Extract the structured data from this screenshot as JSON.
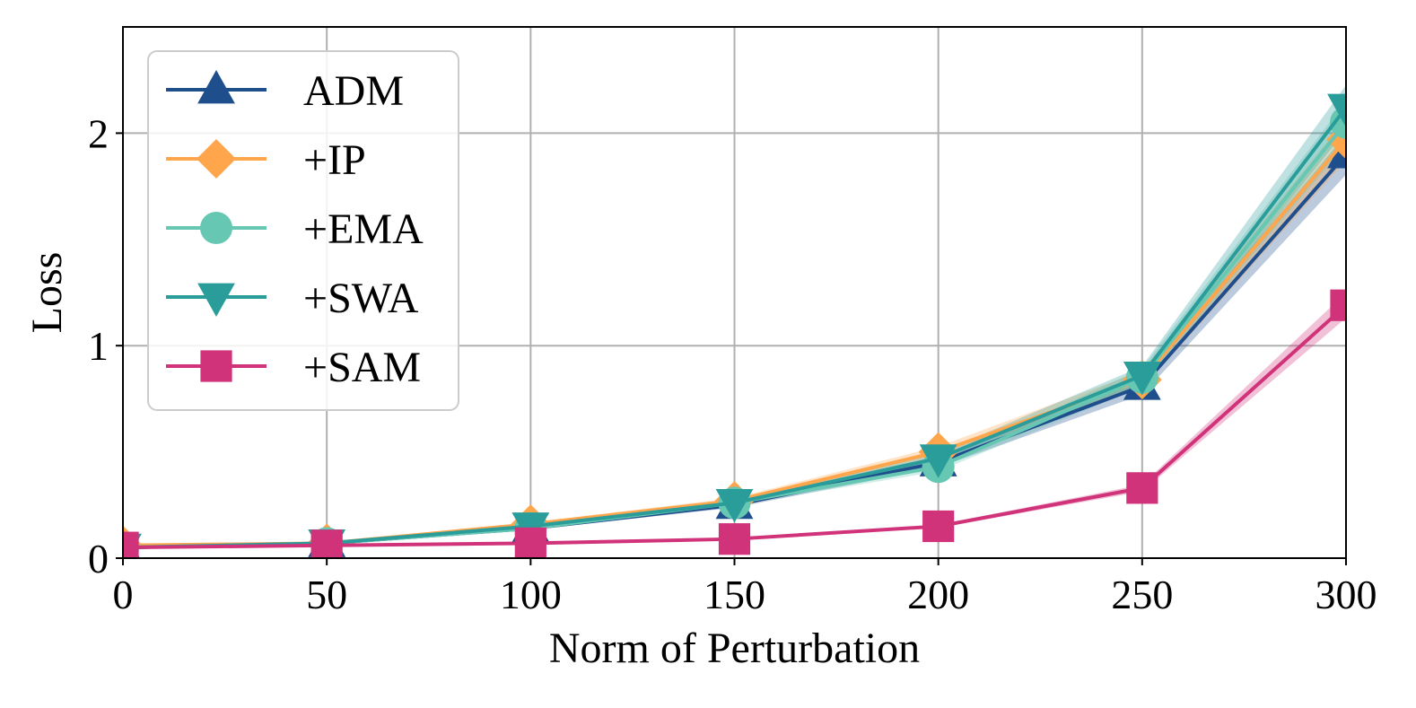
{
  "chart_data": {
    "type": "line",
    "title": "",
    "xlabel": "Norm of Perturbation",
    "ylabel": "Loss",
    "x": [
      0,
      50,
      100,
      150,
      200,
      250,
      300
    ],
    "xlim": [
      0,
      300
    ],
    "ylim": [
      0,
      2.5
    ],
    "xticks": [
      "0",
      "50",
      "100",
      "150",
      "200",
      "250",
      "300"
    ],
    "yticks": [
      "0",
      "1",
      "2"
    ],
    "grid": true,
    "legend_position": "top-left",
    "series": [
      {
        "name": "ADM",
        "color": "#1f4e8c",
        "marker": "triangle-up",
        "values": [
          0.05,
          0.07,
          0.14,
          0.25,
          0.45,
          0.81,
          1.9
        ]
      },
      {
        "name": "+IP",
        "color": "#ffa64d",
        "marker": "diamond",
        "values": [
          0.06,
          0.07,
          0.16,
          0.27,
          0.5,
          0.84,
          1.97
        ]
      },
      {
        "name": "+EMA",
        "color": "#66c7b2",
        "marker": "circle",
        "values": [
          0.05,
          0.07,
          0.14,
          0.26,
          0.43,
          0.85,
          2.05
        ]
      },
      {
        "name": "+SWA",
        "color": "#2a9d9a",
        "marker": "triangle-down",
        "values": [
          0.05,
          0.07,
          0.15,
          0.26,
          0.47,
          0.86,
          2.12
        ]
      },
      {
        "name": "+SAM",
        "color": "#d1337a",
        "marker": "square",
        "values": [
          0.05,
          0.06,
          0.07,
          0.09,
          0.15,
          0.33,
          1.19
        ]
      }
    ]
  }
}
